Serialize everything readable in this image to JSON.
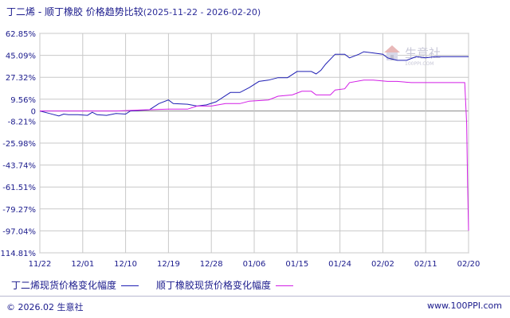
{
  "header": {
    "title": "丁二烯 - 顺丁橡胶 价格趋势比较",
    "date_range": "(2025-11-22 - 2026-02-20)"
  },
  "watermark": {
    "text": "生意社",
    "url": "100PPI.COM"
  },
  "footer": {
    "copyright": "© 2026.02 生意社",
    "site": "www.100PPI.com"
  },
  "colors": {
    "series_1": "#1f1fb4",
    "series_2": "#d21ee6",
    "text": "#1a1a8c",
    "grid": "#c8c8c8",
    "zero_line": "#8a8a8a"
  },
  "chart_data": {
    "type": "line",
    "title": "丁二烯 - 顺丁橡胶 价格趋势比较",
    "xlabel": "",
    "ylabel": "",
    "ylim": [
      -114.81,
      62.85
    ],
    "y_ticks": [
      "62.85%",
      "45.09%",
      "27.32%",
      "9.56%",
      "0",
      "-8.21%",
      "-25.98%",
      "-43.74%",
      "-61.51%",
      "-79.27%",
      "-97.04%",
      "-114.81%"
    ],
    "y_tick_values": [
      62.85,
      45.09,
      27.32,
      9.56,
      0,
      -8.21,
      -25.98,
      -43.74,
      -61.51,
      -79.27,
      -97.04,
      -114.81
    ],
    "x_ticks": [
      "11/22",
      "12/01",
      "12/10",
      "12/19",
      "12/28",
      "01/06",
      "01/15",
      "01/24",
      "02/02",
      "02/11",
      "02/20"
    ],
    "x_tick_values": [
      0,
      9,
      18,
      27,
      36,
      45,
      54,
      63,
      72,
      81,
      90
    ],
    "grid": true,
    "legend_position": "bottom",
    "series": [
      {
        "name": "丁二烯现货价格变化幅度",
        "color": "#1f1fb4",
        "points": [
          [
            0,
            0
          ],
          [
            2,
            -2
          ],
          [
            4,
            -4
          ],
          [
            5,
            -2.5
          ],
          [
            6,
            -3
          ],
          [
            8,
            -3
          ],
          [
            10,
            -3.5
          ],
          [
            11,
            -1
          ],
          [
            12,
            -3
          ],
          [
            14,
            -3.5
          ],
          [
            16,
            -2
          ],
          [
            18,
            -2.5
          ],
          [
            19,
            0
          ],
          [
            21,
            0.5
          ],
          [
            23,
            1
          ],
          [
            25,
            6
          ],
          [
            27,
            9
          ],
          [
            28,
            6
          ],
          [
            31,
            5.5
          ],
          [
            33,
            4
          ],
          [
            35,
            5
          ],
          [
            37,
            7.5
          ],
          [
            40,
            15
          ],
          [
            42,
            15
          ],
          [
            44,
            19
          ],
          [
            46,
            24
          ],
          [
            48,
            25
          ],
          [
            50,
            27
          ],
          [
            52,
            27
          ],
          [
            54,
            32
          ],
          [
            57,
            32
          ],
          [
            58,
            30
          ],
          [
            59,
            33
          ],
          [
            60,
            38
          ],
          [
            62,
            46
          ],
          [
            64,
            46
          ],
          [
            65,
            43
          ],
          [
            67,
            46
          ],
          [
            68,
            48
          ],
          [
            70,
            47
          ],
          [
            72,
            46
          ],
          [
            73,
            43
          ],
          [
            75,
            41
          ],
          [
            77,
            41
          ],
          [
            79,
            44
          ],
          [
            81,
            43
          ],
          [
            83,
            44
          ],
          [
            85,
            44
          ],
          [
            87,
            44
          ],
          [
            90,
            44
          ]
        ]
      },
      {
        "name": "顺丁橡胶现货价格变化幅度",
        "color": "#d21ee6",
        "points": [
          [
            0,
            0
          ],
          [
            8,
            0
          ],
          [
            16,
            0
          ],
          [
            21,
            0.8
          ],
          [
            27,
            1.5
          ],
          [
            31,
            1.5
          ],
          [
            33,
            4
          ],
          [
            36,
            4
          ],
          [
            39,
            6
          ],
          [
            42,
            6
          ],
          [
            44,
            8
          ],
          [
            48,
            9
          ],
          [
            50,
            12
          ],
          [
            53,
            13
          ],
          [
            55,
            16
          ],
          [
            57,
            16
          ],
          [
            58,
            13
          ],
          [
            61,
            13
          ],
          [
            62,
            17
          ],
          [
            64,
            18
          ],
          [
            65,
            23
          ],
          [
            68,
            25
          ],
          [
            70,
            25
          ],
          [
            73,
            24
          ],
          [
            75,
            24
          ],
          [
            78,
            23
          ],
          [
            82,
            23
          ],
          [
            86,
            23
          ],
          [
            89.2,
            23
          ],
          [
            89.6,
            -10
          ],
          [
            89.8,
            -60
          ],
          [
            90,
            -97
          ]
        ]
      }
    ]
  }
}
